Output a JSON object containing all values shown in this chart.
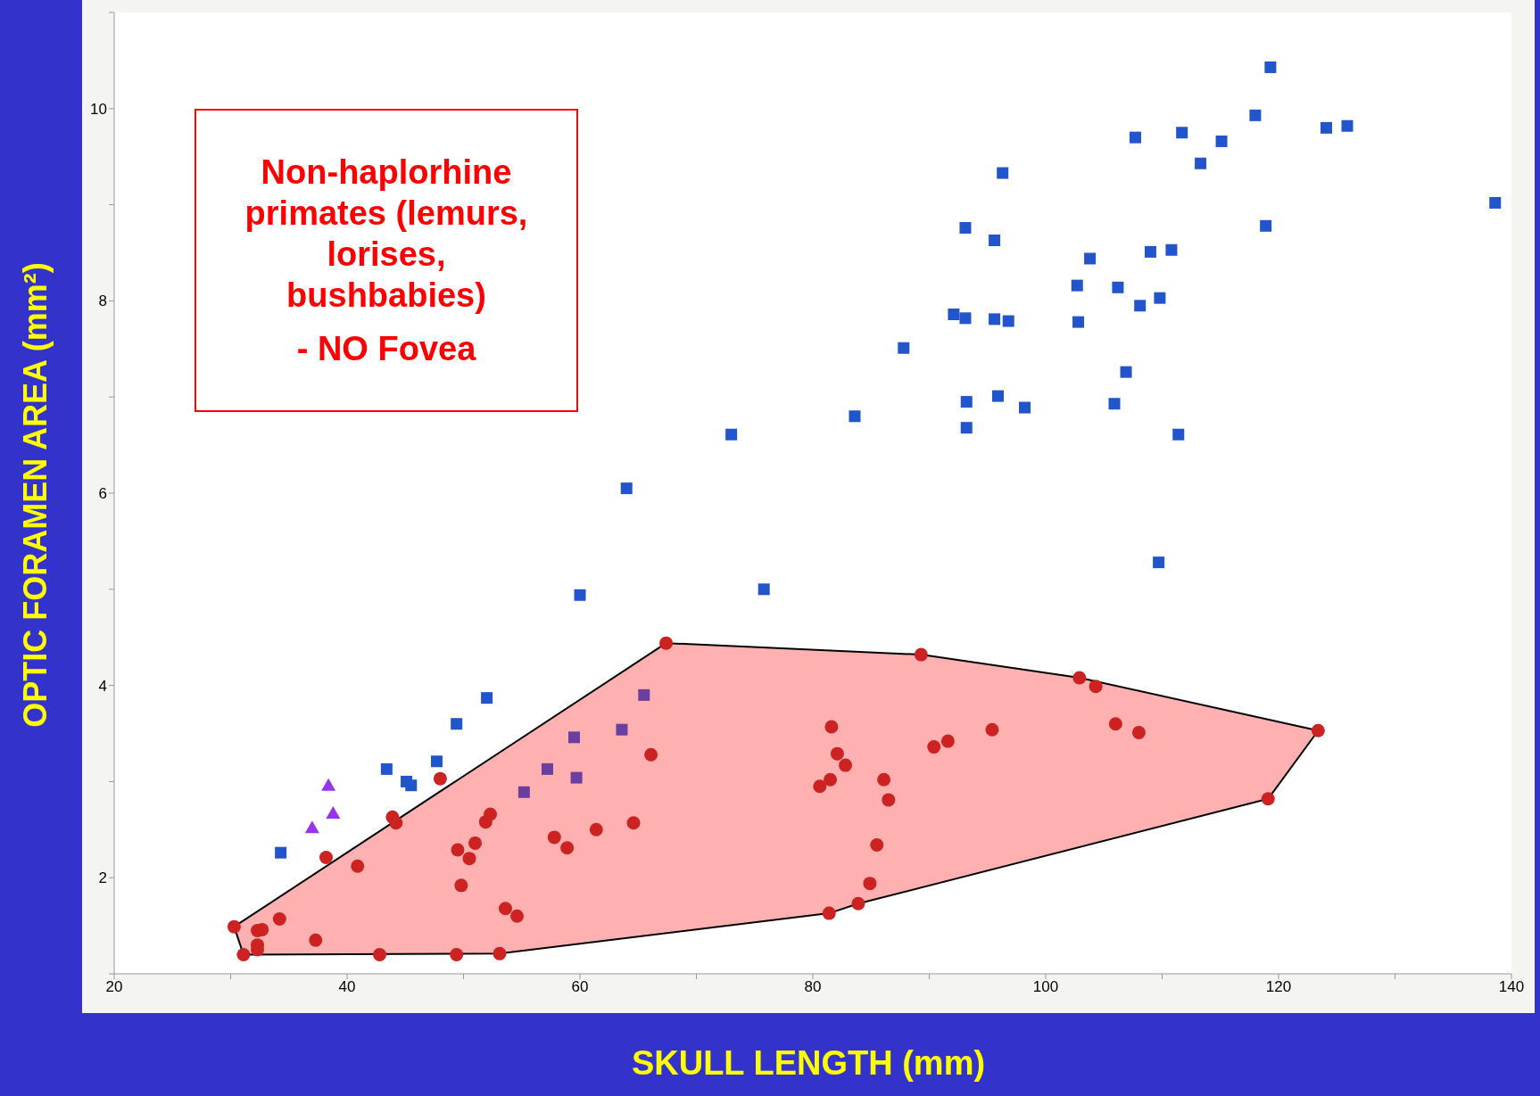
{
  "chart_data": {
    "type": "scatter",
    "xlabel": "SKULL LENGTH (mm)",
    "ylabel": "OPTIC FORAMEN AREA (mm²)",
    "annotations": [
      "Non-haplorhine primates (lemurs, lorises, bushbabies)",
      "- NO Fovea"
    ],
    "xlim": [
      20,
      140
    ],
    "xticks": [
      20,
      {
        "value": 30,
        "label": null
      },
      40,
      {
        "value": 50,
        "label": null
      },
      60,
      {
        "value": 70,
        "label": null
      },
      80,
      {
        "value": 90,
        "label": null
      },
      100,
      {
        "value": 110,
        "label": null
      },
      120,
      {
        "value": 130,
        "label": null
      },
      140
    ],
    "ylim": [
      1,
      11
    ],
    "yticks": [
      {
        "value": 1,
        "label": null
      },
      2,
      {
        "value": 3,
        "label": null
      },
      4,
      {
        "value": 5,
        "label": null
      },
      6,
      {
        "value": 7,
        "label": null
      },
      8,
      {
        "value": 9,
        "label": null
      },
      10,
      {
        "value": 11,
        "label": null
      }
    ],
    "grid": false,
    "legend": false,
    "series": [
      {
        "type": "area",
        "color": "#ffb0b0",
        "x": [
          30.3,
          31.1,
          53.1,
          81.4,
          83.9,
          119.1,
          123.4,
          102.9,
          89.3,
          67.4
        ],
        "values": [
          1.49,
          1.2,
          1.21,
          1.63,
          1.73,
          2.82,
          3.53,
          4.08,
          4.32,
          4.44
        ]
      },
      {
        "color": "#2255cc",
        "marker": "square",
        "x": [
          34.3,
          43.4,
          45.1,
          45.5,
          47.7,
          49.4,
          52.0,
          60.0,
          64.0,
          73.0,
          75.8,
          83.6,
          87.8,
          92.1,
          93.1,
          95.6,
          96.8,
          93.2,
          93.2,
          95.9,
          98.2,
          93.1,
          95.6,
          96.3,
          119.3,
          118.0,
          107.7,
          111.7,
          115.1,
          113.3,
          124.1,
          125.9,
          138.6,
          118.9,
          103.8,
          109.0,
          110.8,
          102.7,
          106.2,
          108.1,
          109.8,
          102.8,
          106.9,
          105.9,
          111.4,
          109.7
        ],
        "values": [
          2.26,
          3.13,
          3.0,
          2.96,
          3.21,
          3.6,
          3.87,
          4.94,
          6.05,
          6.61,
          5.0,
          6.8,
          7.51,
          7.86,
          7.82,
          7.81,
          7.79,
          6.95,
          6.68,
          7.01,
          6.89,
          8.76,
          8.63,
          9.33,
          10.43,
          9.93,
          9.7,
          9.75,
          9.66,
          9.43,
          9.8,
          9.82,
          9.02,
          8.78,
          8.44,
          8.51,
          8.53,
          8.16,
          8.14,
          7.95,
          8.03,
          7.78,
          7.26,
          6.93,
          6.61,
          5.28
        ]
      },
      {
        "color": "#6a3fa0",
        "marker": "square",
        "x": [
          55.2,
          57.2,
          59.5,
          59.7,
          63.6,
          65.5
        ],
        "values": [
          2.89,
          3.13,
          3.46,
          3.04,
          3.54,
          3.9
        ]
      },
      {
        "color": "#9933ee",
        "marker": "triangle",
        "x": [
          37.0,
          38.4,
          38.8
        ],
        "values": [
          2.52,
          2.96,
          2.67
        ]
      },
      {
        "color": "#cc2222",
        "marker": "circle",
        "x": [
          30.3,
          31.1,
          32.3,
          32.7,
          32.3,
          32.3,
          34.2,
          37.3,
          38.2,
          40.9,
          42.8,
          43.9,
          44.2,
          48.0,
          49.5,
          49.8,
          49.4,
          50.5,
          51.0,
          51.9,
          52.3,
          53.1,
          53.6,
          54.6,
          57.8,
          58.9,
          61.4,
          64.6,
          66.1,
          67.4,
          80.6,
          81.5,
          81.6,
          82.1,
          82.8,
          81.4,
          83.9,
          84.9,
          85.5,
          86.1,
          86.5,
          89.3,
          90.4,
          91.6,
          95.4,
          102.9,
          104.3,
          106.0,
          108.0,
          123.4,
          119.1
        ],
        "values": [
          1.49,
          1.2,
          1.45,
          1.46,
          1.3,
          1.25,
          1.57,
          1.35,
          2.21,
          2.12,
          1.2,
          2.63,
          2.57,
          3.03,
          2.29,
          1.92,
          1.2,
          2.2,
          2.36,
          2.58,
          2.66,
          1.21,
          1.68,
          1.6,
          2.42,
          2.31,
          2.5,
          2.57,
          3.28,
          4.44,
          2.95,
          3.02,
          3.57,
          3.29,
          3.17,
          1.63,
          1.73,
          1.94,
          2.34,
          3.02,
          2.81,
          4.32,
          3.36,
          3.42,
          3.54,
          4.08,
          3.99,
          3.6,
          3.51,
          3.53,
          2.82
        ]
      }
    ]
  }
}
